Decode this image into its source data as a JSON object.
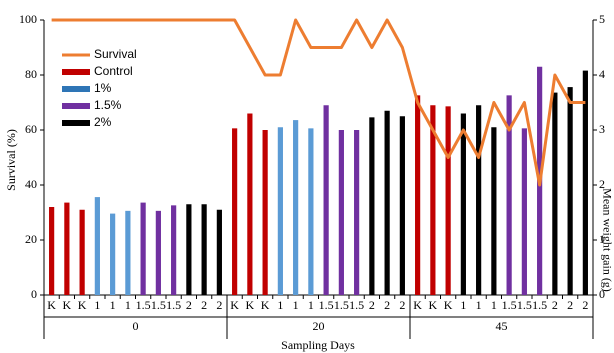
{
  "chart_data": {
    "type": "bar",
    "ylabel": "Survival (%)",
    "y2label": "Mean weight gain (g)",
    "xlabel": "Sampling Days",
    "categories": [
      "K",
      "K",
      "K",
      "1",
      "1",
      "1",
      "1.5",
      "1.5",
      "1.5",
      "2",
      "2",
      "2",
      "K",
      "K",
      "K",
      "1",
      "1",
      "1",
      "1.5",
      "1.5",
      "1.5",
      "2",
      "2",
      "2",
      "K",
      "K",
      "K",
      "1",
      "1",
      "1",
      "1.5",
      "1.5",
      "1.5",
      "2",
      "2",
      "2"
    ],
    "groups": [
      "0",
      "20",
      "45"
    ],
    "ylim": [
      0,
      100
    ],
    "yticks": [
      0,
      20,
      40,
      60,
      80,
      100
    ],
    "y2lim": [
      0,
      5
    ],
    "y2ticks": [
      0,
      1,
      2,
      3,
      4,
      5
    ],
    "series": [
      {
        "name": "Survival",
        "type": "line",
        "color": "#ed7d31",
        "values": [
          100,
          100,
          100,
          100,
          100,
          100,
          100,
          100,
          100,
          100,
          100,
          100,
          100,
          90,
          80,
          80,
          100,
          90,
          90,
          90,
          100,
          90,
          100,
          90,
          70,
          60,
          50,
          60,
          50,
          70,
          60,
          70,
          40,
          80,
          70,
          70
        ]
      },
      {
        "type": "bar",
        "axis": "y2",
        "values": [
          1.6,
          1.68,
          1.55,
          1.78,
          1.48,
          1.53,
          1.68,
          1.53,
          1.63,
          1.65,
          1.65,
          1.55,
          3.03,
          3.3,
          3.0,
          3.05,
          3.18,
          3.03,
          3.45,
          3.0,
          3.0,
          3.23,
          3.35,
          3.25,
          3.63,
          3.45,
          3.43,
          3.3,
          3.45,
          3.05,
          3.63,
          3.03,
          4.15,
          3.68,
          3.78,
          4.08
        ],
        "colors": [
          "#c00000",
          "#c00000",
          "#c00000",
          "#5b9bd5",
          "#5b9bd5",
          "#5b9bd5",
          "#7030a0",
          "#7030a0",
          "#7030a0",
          "#000000",
          "#000000",
          "#000000",
          "#c00000",
          "#c00000",
          "#c00000",
          "#5b9bd5",
          "#5b9bd5",
          "#5b9bd5",
          "#7030a0",
          "#7030a0",
          "#7030a0",
          "#000000",
          "#000000",
          "#000000",
          "#c00000",
          "#c00000",
          "#c00000",
          "#000000",
          "#000000",
          "#000000",
          "#7030a0",
          "#7030a0",
          "#7030a0",
          "#000000",
          "#000000",
          "#000000"
        ]
      }
    ],
    "legend": [
      {
        "name": "Control",
        "color": "#c00000"
      },
      {
        "name": "1%",
        "color": "#2e75b6"
      },
      {
        "name": "1.5%",
        "color": "#7030a0"
      },
      {
        "name": "2%",
        "color": "#000000"
      }
    ],
    "legend_position": "upper left"
  }
}
